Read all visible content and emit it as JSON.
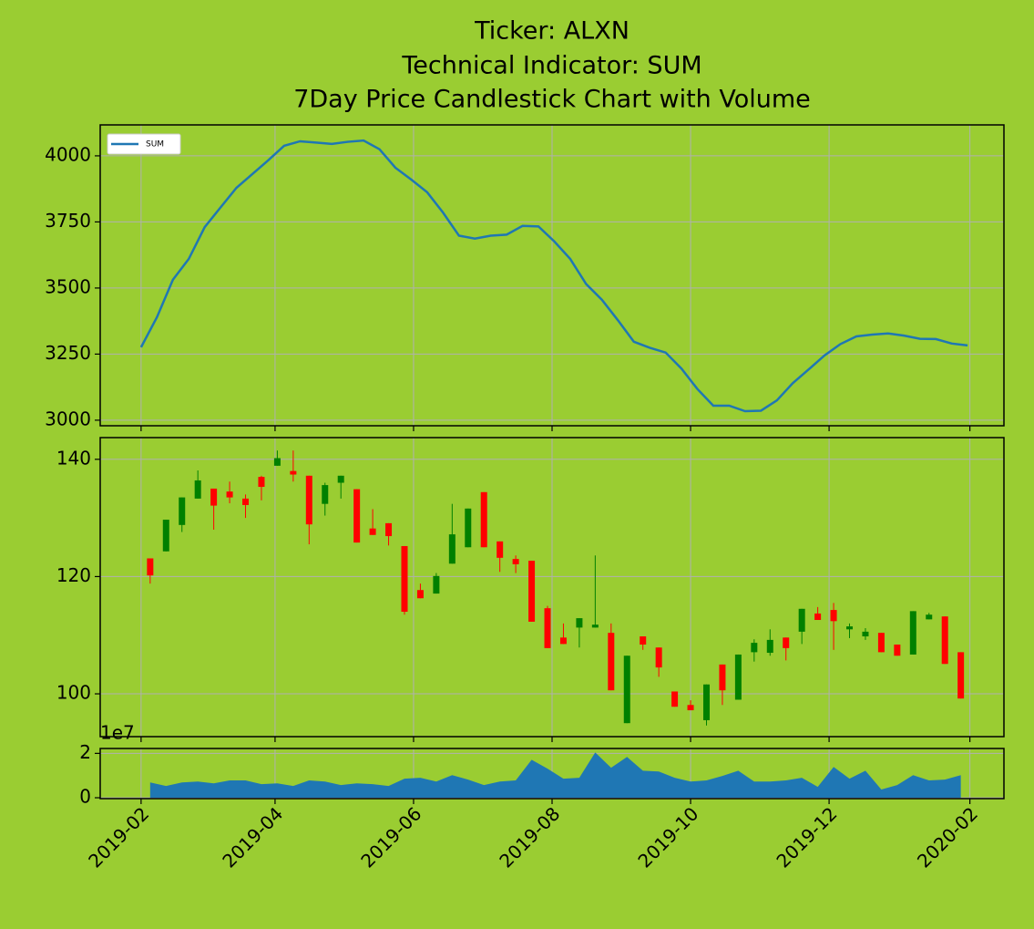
{
  "chart_data": [
    {
      "type": "line",
      "title": [
        "Ticker: ALXN",
        "Technical Indicator: SUM",
        "7Day Price Candlestick Chart with Volume"
      ],
      "x": [
        "2019-02-01",
        "2019-02-08",
        "2019-02-15",
        "2019-02-22",
        "2019-03-01",
        "2019-03-08",
        "2019-03-15",
        "2019-03-22",
        "2019-03-29",
        "2019-04-05",
        "2019-04-12",
        "2019-04-19",
        "2019-04-26",
        "2019-05-03",
        "2019-05-10",
        "2019-05-17",
        "2019-05-24",
        "2019-05-31",
        "2019-06-07",
        "2019-06-14",
        "2019-06-21",
        "2019-06-28",
        "2019-07-05",
        "2019-07-12",
        "2019-07-19",
        "2019-07-26",
        "2019-08-02",
        "2019-08-09",
        "2019-08-16",
        "2019-08-23",
        "2019-08-30",
        "2019-09-06",
        "2019-09-13",
        "2019-09-20",
        "2019-09-27",
        "2019-10-04",
        "2019-10-11",
        "2019-10-18",
        "2019-10-25",
        "2019-11-01",
        "2019-11-08",
        "2019-11-15",
        "2019-11-22",
        "2019-11-29",
        "2019-12-06",
        "2019-12-13",
        "2019-12-20",
        "2019-12-27",
        "2020-01-03",
        "2020-01-10",
        "2020-01-17",
        "2020-01-24",
        "2020-01-31"
      ],
      "series": [
        {
          "name": "SUM",
          "color": "#1f77b4",
          "values": [
            3276,
            3390,
            3531,
            3610,
            3730,
            3805,
            3879,
            3931,
            3983,
            4038,
            4055,
            4050,
            4045,
            4053,
            4058,
            4025,
            3955,
            3910,
            3862,
            3785,
            3698,
            3687,
            3698,
            3702,
            3735,
            3733,
            3676,
            3610,
            3515,
            3455,
            3378,
            3297,
            3274,
            3256,
            3195,
            3118,
            3055,
            3055,
            3034,
            3036,
            3075,
            3140,
            3192,
            3245,
            3288,
            3317,
            3324,
            3328,
            3320,
            3308,
            3307,
            3290,
            3283
          ]
        }
      ],
      "xlim": [
        "2019-01-14",
        "2020-02-16"
      ],
      "xticks": [
        "2019-02",
        "2019-04",
        "2019-06",
        "2019-08",
        "2019-10",
        "2019-12",
        "2020-02"
      ],
      "ylim": [
        2979,
        4117
      ],
      "yticks": [
        3000,
        3250,
        3500,
        3750,
        4000
      ],
      "grid": true,
      "legend": "upper left"
    },
    {
      "type": "candlestick",
      "x": [
        "2019-02-05",
        "2019-02-12",
        "2019-02-19",
        "2019-02-26",
        "2019-03-05",
        "2019-03-12",
        "2019-03-19",
        "2019-03-26",
        "2019-04-02",
        "2019-04-09",
        "2019-04-16",
        "2019-04-23",
        "2019-04-30",
        "2019-05-07",
        "2019-05-14",
        "2019-05-21",
        "2019-05-28",
        "2019-06-04",
        "2019-06-11",
        "2019-06-18",
        "2019-06-25",
        "2019-07-02",
        "2019-07-09",
        "2019-07-16",
        "2019-07-23",
        "2019-07-30",
        "2019-08-06",
        "2019-08-13",
        "2019-08-20",
        "2019-08-27",
        "2019-09-03",
        "2019-09-10",
        "2019-09-17",
        "2019-09-24",
        "2019-10-01",
        "2019-10-08",
        "2019-10-15",
        "2019-10-22",
        "2019-10-29",
        "2019-11-05",
        "2019-11-12",
        "2019-11-19",
        "2019-11-26",
        "2019-12-03",
        "2019-12-10",
        "2019-12-17",
        "2019-12-24",
        "2019-12-31",
        "2020-01-07",
        "2020-01-14",
        "2020-01-21",
        "2020-01-28"
      ],
      "open": [
        123.1,
        124.3,
        128.8,
        133.3,
        135.0,
        134.5,
        133.3,
        137.0,
        138.9,
        138.0,
        137.2,
        132.4,
        136.0,
        134.9,
        128.2,
        129.1,
        125.2,
        117.7,
        117.1,
        122.2,
        125.0,
        134.4,
        126.0,
        123.0,
        122.7,
        114.6,
        109.6,
        111.3,
        111.3,
        110.4,
        95.0,
        109.8,
        107.9,
        100.4,
        98.1,
        95.5,
        105.0,
        99.0,
        107.1,
        107.0,
        109.6,
        110.6,
        113.7,
        114.3,
        111.0,
        109.8,
        110.4,
        108.4,
        106.7,
        112.7,
        113.2,
        107.1
      ],
      "high": [
        123.1,
        129.7,
        133.5,
        138.1,
        135.0,
        136.2,
        134.0,
        137.2,
        141.5,
        141.5,
        137.2,
        136.0,
        137.2,
        134.9,
        131.5,
        129.1,
        125.2,
        118.8,
        120.6,
        132.4,
        131.6,
        134.4,
        126.0,
        123.6,
        122.7,
        115.0,
        112.0,
        112.9,
        123.6,
        112.0,
        106.5,
        109.8,
        107.9,
        100.4,
        98.9,
        101.6,
        105.0,
        106.7,
        109.3,
        111.0,
        109.6,
        114.5,
        114.8,
        115.5,
        112.0,
        111.2,
        110.4,
        108.4,
        114.1,
        113.8,
        113.2,
        107.1
      ],
      "low": [
        118.8,
        124.3,
        127.6,
        133.3,
        128.0,
        132.5,
        130.0,
        133.0,
        138.9,
        136.2,
        125.5,
        130.4,
        133.3,
        125.8,
        127.1,
        125.3,
        113.5,
        116.3,
        117.1,
        122.2,
        125.0,
        125.0,
        120.8,
        120.6,
        112.3,
        107.8,
        108.5,
        107.9,
        111.3,
        100.6,
        95.0,
        107.5,
        102.9,
        97.8,
        97.2,
        94.6,
        98.1,
        99.0,
        105.5,
        106.5,
        105.7,
        108.5,
        112.6,
        107.5,
        109.5,
        109.2,
        107.1,
        106.5,
        106.7,
        112.7,
        105.1,
        99.2
      ],
      "close": [
        120.2,
        129.7,
        133.5,
        136.4,
        132.1,
        133.5,
        132.2,
        135.3,
        140.2,
        137.4,
        128.9,
        135.6,
        137.2,
        125.8,
        127.1,
        126.9,
        114.0,
        116.3,
        120.1,
        127.2,
        131.6,
        125.0,
        123.2,
        122.1,
        112.3,
        107.8,
        108.5,
        112.9,
        111.8,
        100.6,
        106.5,
        108.4,
        104.5,
        97.8,
        97.2,
        101.6,
        100.6,
        106.7,
        108.7,
        109.2,
        107.8,
        114.5,
        112.6,
        112.4,
        111.5,
        110.6,
        107.1,
        106.5,
        114.1,
        113.5,
        105.1,
        99.2
      ],
      "up_color": "#008000",
      "down_color": "#ff0000",
      "xlim": [
        "2019-01-14",
        "2020-02-16"
      ],
      "xticks": [
        "2019-02",
        "2019-04",
        "2019-06",
        "2019-08",
        "2019-10",
        "2019-12",
        "2020-02"
      ],
      "ylim": [
        92.7,
        143.7
      ],
      "yticks": [
        100,
        120,
        140
      ],
      "grid": true
    },
    {
      "type": "area",
      "x": [
        "2019-02-05",
        "2019-02-12",
        "2019-02-19",
        "2019-02-26",
        "2019-03-05",
        "2019-03-12",
        "2019-03-19",
        "2019-03-26",
        "2019-04-02",
        "2019-04-09",
        "2019-04-16",
        "2019-04-23",
        "2019-04-30",
        "2019-05-07",
        "2019-05-14",
        "2019-05-21",
        "2019-05-28",
        "2019-06-04",
        "2019-06-11",
        "2019-06-18",
        "2019-06-25",
        "2019-07-02",
        "2019-07-09",
        "2019-07-16",
        "2019-07-23",
        "2019-07-30",
        "2019-08-06",
        "2019-08-13",
        "2019-08-20",
        "2019-08-27",
        "2019-09-03",
        "2019-09-10",
        "2019-09-17",
        "2019-09-24",
        "2019-10-01",
        "2019-10-08",
        "2019-10-15",
        "2019-10-22",
        "2019-10-29",
        "2019-11-05",
        "2019-11-12",
        "2019-11-19",
        "2019-11-26",
        "2019-12-03",
        "2019-12-10",
        "2019-12-17",
        "2019-12-24",
        "2019-12-31",
        "2020-01-07",
        "2020-01-14",
        "2020-01-21",
        "2020-01-28"
      ],
      "values": [
        0.69,
        0.53,
        0.69,
        0.73,
        0.65,
        0.78,
        0.78,
        0.61,
        0.65,
        0.53,
        0.78,
        0.73,
        0.57,
        0.65,
        0.61,
        0.53,
        0.86,
        0.9,
        0.73,
        1.02,
        0.82,
        0.57,
        0.73,
        0.78,
        1.71,
        1.31,
        0.86,
        0.9,
        2.04,
        1.35,
        1.84,
        1.22,
        1.18,
        0.9,
        0.73,
        0.78,
        0.98,
        1.22,
        0.73,
        0.73,
        0.78,
        0.9,
        0.49,
        1.39,
        0.86,
        1.22,
        0.37,
        0.57,
        1.02,
        0.78,
        0.82,
        1.02
      ],
      "color": "#1f77b4",
      "y_offset_label": "1e7",
      "xlim": [
        "2019-01-14",
        "2020-02-16"
      ],
      "xticks": [
        "2019-02",
        "2019-04",
        "2019-06",
        "2019-08",
        "2019-10",
        "2019-12",
        "2020-02"
      ],
      "ylim": [
        -0.04,
        2.22
      ],
      "yticks": [
        0,
        2
      ],
      "grid": true
    }
  ]
}
